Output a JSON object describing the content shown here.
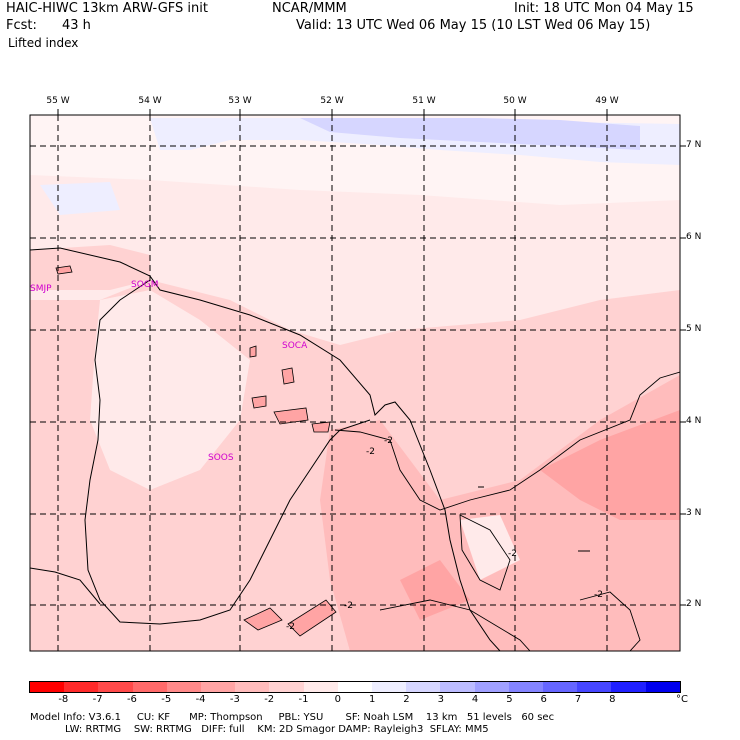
{
  "header": {
    "model": "HAIC-HIWC 13km ARW-GFS init",
    "org": "NCAR/MMM",
    "init": "Init: 18 UTC Mon 04 May 15",
    "fcst_label": "Fcst:",
    "fcst_value": "43 h",
    "valid": "Valid: 13 UTC Wed 06 May 15 (10 LST Wed 06 May 15)",
    "field": "Lifted index"
  },
  "map": {
    "longitudes": [
      "55 W",
      "54 W",
      "53 W",
      "52 W",
      "51 W",
      "50 W",
      "49 W"
    ],
    "latitudes": [
      "7 N",
      "6 N",
      "5 N",
      "4 N",
      "3 N",
      "2 N"
    ],
    "stations": [
      "SMJP",
      "SOGM",
      "SOCA",
      "SOOS"
    ],
    "contour_labels": [
      "-2",
      "-2",
      "-2",
      "-2",
      "-2",
      "-2"
    ]
  },
  "colorbar": {
    "colors": [
      "#ff0000",
      "#ff2a2a",
      "#ff4a4a",
      "#ff6a6a",
      "#ff8a8a",
      "#ffa4a4",
      "#ffbcbc",
      "#ffd2d2",
      "#ffeaea",
      "#ffffff",
      "#eeeeff",
      "#d6d6ff",
      "#bcbcff",
      "#a0a0ff",
      "#8484ff",
      "#6666ff",
      "#4646ff",
      "#2020ff",
      "#0000ee"
    ],
    "ticks": [
      "-8",
      "-7",
      "-6",
      "-5",
      "-4",
      "-3",
      "-2",
      "-1",
      "0",
      "1",
      "2",
      "3",
      "4",
      "5",
      "6",
      "7",
      "8"
    ],
    "unit": "°C"
  },
  "footer": {
    "line1": "Model Info: V3.6.1     CU: KF      MP: Thompson     PBL: YSU       SF: Noah LSM    13 km   51 levels   60 sec",
    "line2": "           LW: RRTMG    SW: RRTMG   DIFF: full    KM: 2D Smagor DAMP: Rayleigh3  SFLAY: MM5"
  }
}
